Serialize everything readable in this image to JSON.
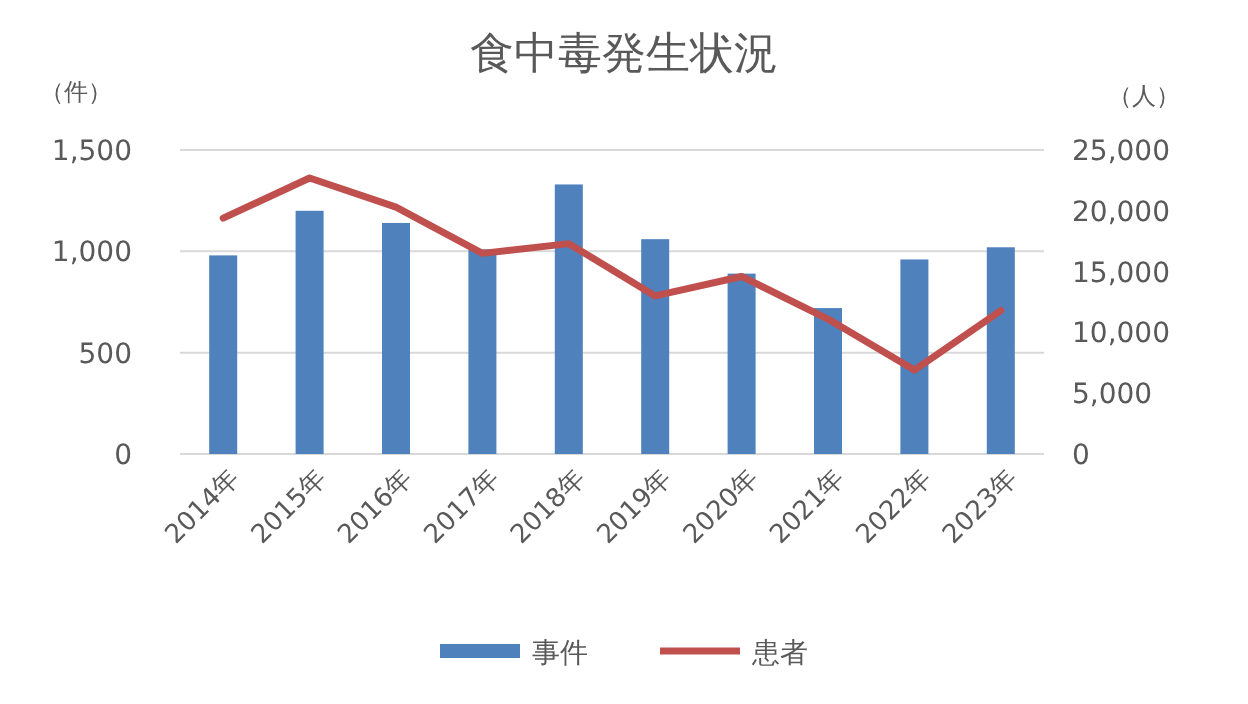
{
  "chart_data": {
    "type": "bar",
    "title": "食中毒発生状況",
    "ylabel": "（件）",
    "y2label": "（人）",
    "categories": [
      "2014年",
      "2015年",
      "2016年",
      "2017年",
      "2018年",
      "2019年",
      "2020年",
      "2021年",
      "2022年",
      "2023年"
    ],
    "series": [
      {
        "name": "事件",
        "color": "#4f81bd",
        "values": [
          980,
          1200,
          1140,
          1010,
          1330,
          1060,
          890,
          720,
          960,
          1020
        ]
      },
      {
        "name": "患者",
        "type": "line",
        "axis": "y2",
        "color": "#c0504d",
        "values": [
          19400,
          22700,
          20300,
          16500,
          17300,
          13000,
          14600,
          11100,
          6900,
          11800
        ]
      }
    ],
    "ylim": [
      0,
      1500
    ],
    "yticks": [
      0,
      500,
      {
        "value": 1000,
        "label": "1,000"
      },
      {
        "value": 1500,
        "label": "1,500"
      }
    ],
    "y2lim": [
      0,
      25000
    ],
    "y2ticks": [
      0,
      {
        "value": 5000,
        "label": "5,000"
      },
      {
        "value": 10000,
        "label": "10,000"
      },
      {
        "value": 15000,
        "label": "15,000"
      },
      {
        "value": 20000,
        "label": "20,000"
      },
      {
        "value": 25000,
        "label": "25,000"
      }
    ],
    "grid": "y",
    "legend": "bottom",
    "marker": "none",
    "line_style": "solid"
  }
}
